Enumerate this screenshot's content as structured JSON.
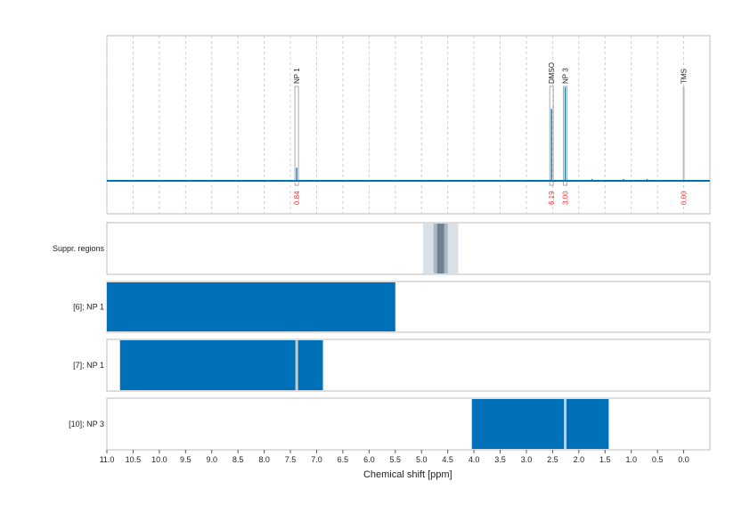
{
  "chart_data": {
    "type": "line",
    "xlabel": "Chemical shift [ppm]",
    "xlim": [
      11.0,
      -0.5
    ],
    "xticks": [
      "11.0",
      "10.5",
      "10.0",
      "9.5",
      "9.0",
      "8.5",
      "8.0",
      "7.5",
      "7.0",
      "6.5",
      "6.0",
      "5.5",
      "5.0",
      "4.5",
      "4.0",
      "3.5",
      "3.0",
      "2.5",
      "2.0",
      "1.5",
      "1.0",
      "0.5",
      "0.0"
    ],
    "grid": true,
    "series_color": "#0070b8",
    "integral_color": "#ff3333",
    "spectrum_peaks": [
      {
        "ppm": 7.38,
        "intensity": 0.14
      },
      {
        "ppm": 2.52,
        "intensity": 0.77
      },
      {
        "ppm": 2.26,
        "intensity": 1.0
      },
      {
        "ppm": 1.75,
        "intensity": 0.02
      },
      {
        "ppm": 1.15,
        "intensity": 0.015
      },
      {
        "ppm": 0.7,
        "intensity": 0.01
      }
    ],
    "annotations": [
      {
        "label": "NP 1",
        "ppm": 7.38,
        "integral": "0.84"
      },
      {
        "label": "DMSO",
        "ppm": 2.52,
        "integral": "6.19"
      },
      {
        "label": "NP 3",
        "ppm": 2.26,
        "integral": "3.00"
      },
      {
        "label": "TMS",
        "ppm": 0.0,
        "integral": "0.00"
      }
    ],
    "tracks": [
      {
        "label": "Suppr. regions",
        "regions": [
          {
            "from": 4.97,
            "to": 4.3,
            "level": 1
          },
          {
            "from": 4.77,
            "to": 4.5,
            "level": 2
          },
          {
            "from": 4.7,
            "to": 4.57,
            "level": 3
          }
        ]
      },
      {
        "label": "[6]; NP 1",
        "ranges": [
          {
            "from": 11.0,
            "to": 5.5
          }
        ],
        "markers": []
      },
      {
        "label": "[7]; NP 1",
        "ranges": [
          {
            "from": 10.75,
            "to": 6.88
          }
        ],
        "markers": [
          7.38
        ]
      },
      {
        "label": "[10]; NP 3",
        "ranges": [
          {
            "from": 4.04,
            "to": 1.43
          }
        ],
        "markers": [
          2.26
        ]
      }
    ]
  }
}
